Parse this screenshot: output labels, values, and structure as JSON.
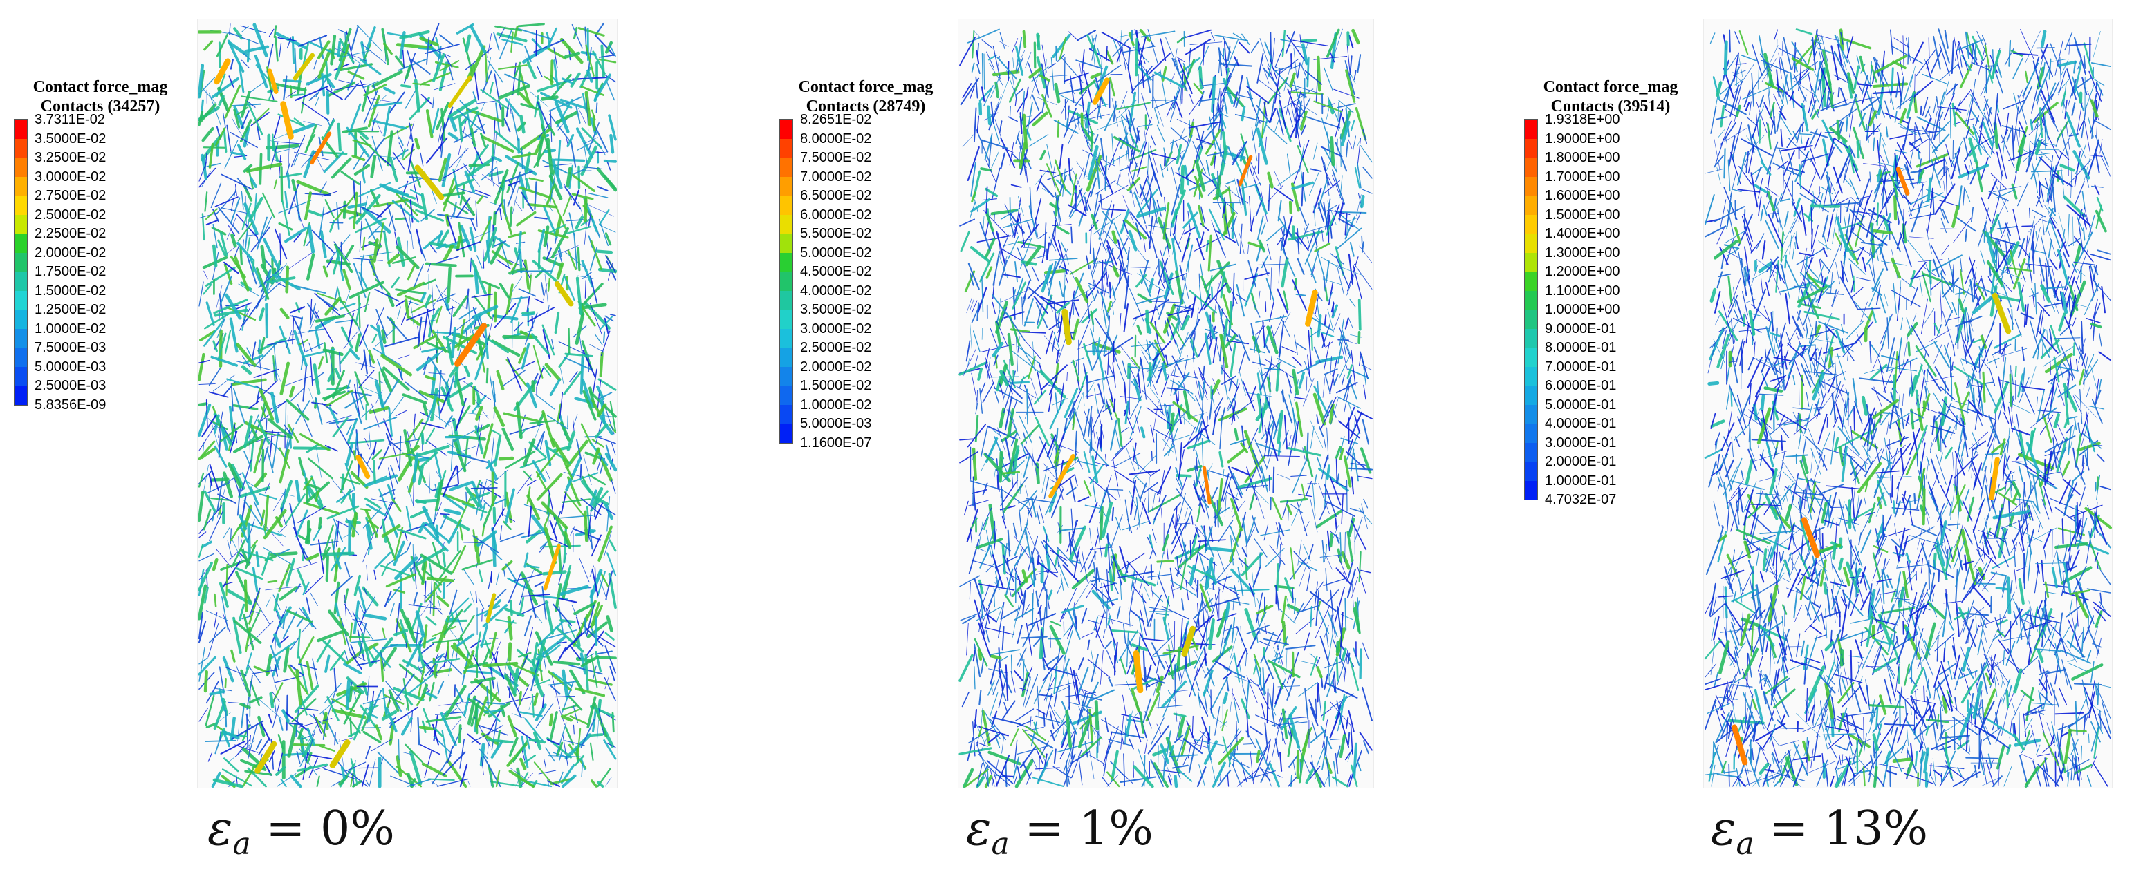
{
  "panels": [
    {
      "legend": {
        "title": "Contact force_mag",
        "subtitle": "Contacts (34257)",
        "ticks": [
          "3.7311E-02",
          "3.5000E-02",
          "3.2500E-02",
          "3.0000E-02",
          "2.7500E-02",
          "2.5000E-02",
          "2.2500E-02",
          "2.0000E-02",
          "1.7500E-02",
          "1.5000E-02",
          "1.2500E-02",
          "1.0000E-02",
          "7.5000E-03",
          "5.0000E-03",
          "2.5000E-03",
          "5.8356E-09"
        ]
      },
      "strain": {
        "symbol": "ε",
        "subscript": "a",
        "eq": " = 0%"
      }
    },
    {
      "legend": {
        "title": "Contact force_mag",
        "subtitle": "Contacts (28749)",
        "ticks": [
          "8.2651E-02",
          "8.0000E-02",
          "7.5000E-02",
          "7.0000E-02",
          "6.5000E-02",
          "6.0000E-02",
          "5.5000E-02",
          "5.0000E-02",
          "4.5000E-02",
          "4.0000E-02",
          "3.5000E-02",
          "3.0000E-02",
          "2.5000E-02",
          "2.0000E-02",
          "1.5000E-02",
          "1.0000E-02",
          "5.0000E-03",
          "1.1600E-07"
        ]
      },
      "strain": {
        "symbol": "ε",
        "subscript": "a",
        "eq": " = 1%"
      }
    },
    {
      "legend": {
        "title": "Contact force_mag",
        "subtitle": "Contacts (39514)",
        "ticks": [
          "1.9318E+00",
          "1.9000E+00",
          "1.8000E+00",
          "1.7000E+00",
          "1.6000E+00",
          "1.5000E+00",
          "1.4000E+00",
          "1.3000E+00",
          "1.2000E+00",
          "1.1000E+00",
          "1.0000E+00",
          "9.0000E-01",
          "8.0000E-01",
          "7.0000E-01",
          "6.0000E-01",
          "5.0000E-01",
          "4.0000E-01",
          "3.0000E-01",
          "2.0000E-01",
          "1.0000E-01",
          "4.7032E-07"
        ]
      },
      "strain": {
        "symbol": "ε",
        "subscript": "a",
        "eq": " = 13%"
      }
    }
  ],
  "colors": {
    "scale": [
      "#ff0000",
      "#ff4a00",
      "#ff7f00",
      "#ffb000",
      "#ffd800",
      "#c8e800",
      "#2ad12a",
      "#21c46a",
      "#1fc7a8",
      "#22d4d4",
      "#16b4e0",
      "#1490e8",
      "#1070ee",
      "#0a4ef2",
      "#0020f6"
    ],
    "network": [
      "#0a1fd8",
      "#1142d6",
      "#1a66d4",
      "#1d8fd0",
      "#1fb3c2",
      "#23c09a",
      "#27bb62",
      "#49c437"
    ],
    "hot": [
      "#ff7f00",
      "#ffb000",
      "#d9c800"
    ]
  }
}
